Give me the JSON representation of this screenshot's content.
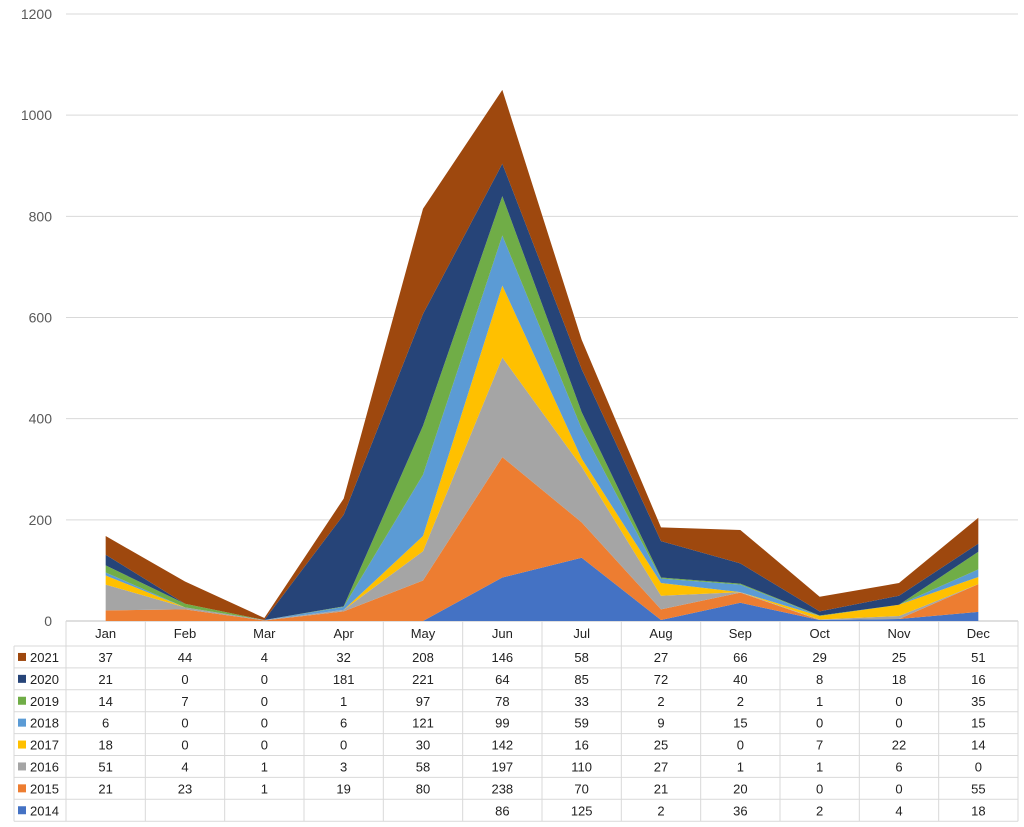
{
  "chart_data": {
    "type": "area",
    "stacked": true,
    "categories": [
      "Jan",
      "Feb",
      "Mar",
      "Apr",
      "May",
      "Jun",
      "Jul",
      "Aug",
      "Sep",
      "Oct",
      "Nov",
      "Dec"
    ],
    "ylim": [
      0,
      1200
    ],
    "yticks": [
      "0",
      "200",
      "400",
      "600",
      "800",
      "1000",
      "1200"
    ],
    "grid": true,
    "legend": "data-table-left",
    "series": [
      {
        "name": "2014",
        "color": "#4472C4",
        "values": [
          null,
          null,
          null,
          null,
          null,
          86,
          125,
          2,
          36,
          2,
          4,
          18
        ]
      },
      {
        "name": "2015",
        "color": "#ED7D31",
        "values": [
          21,
          23,
          1,
          19,
          80,
          238,
          70,
          21,
          20,
          0,
          0,
          55
        ]
      },
      {
        "name": "2016",
        "color": "#A5A5A5",
        "values": [
          51,
          4,
          1,
          3,
          58,
          197,
          110,
          27,
          1,
          1,
          6,
          0
        ]
      },
      {
        "name": "2017",
        "color": "#FFC000",
        "values": [
          18,
          0,
          0,
          0,
          30,
          142,
          16,
          25,
          0,
          7,
          22,
          14
        ]
      },
      {
        "name": "2018",
        "color": "#5B9BD5",
        "values": [
          6,
          0,
          0,
          6,
          121,
          99,
          59,
          9,
          15,
          0,
          0,
          15
        ]
      },
      {
        "name": "2019",
        "color": "#70AD47",
        "values": [
          14,
          7,
          0,
          1,
          97,
          78,
          33,
          2,
          2,
          1,
          0,
          35
        ]
      },
      {
        "name": "2020",
        "color": "#264478",
        "values": [
          21,
          0,
          0,
          181,
          221,
          64,
          85,
          72,
          40,
          8,
          18,
          16
        ]
      },
      {
        "name": "2021",
        "color": "#9E480E",
        "values": [
          37,
          44,
          4,
          32,
          208,
          146,
          58,
          27,
          66,
          29,
          25,
          51
        ]
      }
    ]
  }
}
